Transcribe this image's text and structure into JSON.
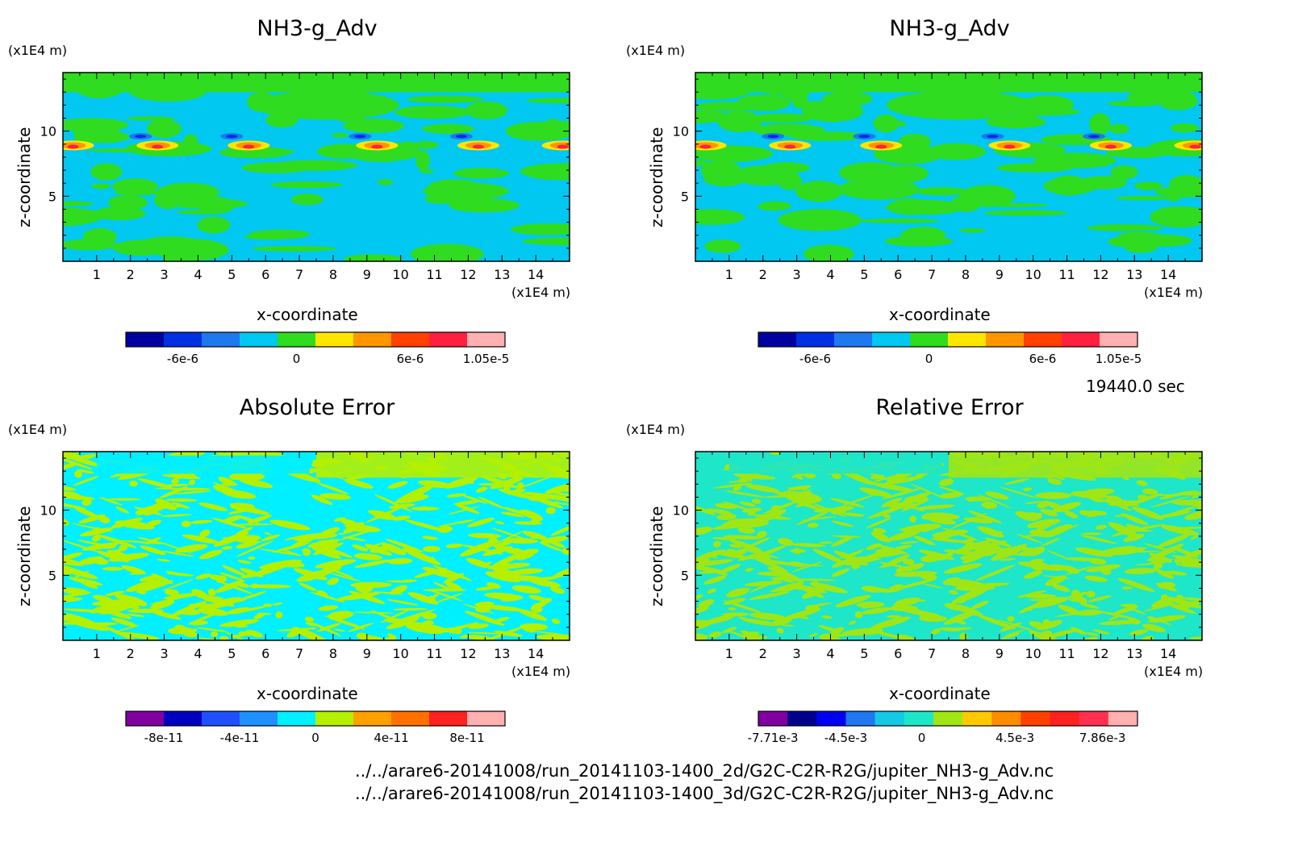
{
  "time_label": "19440.0 sec",
  "file_paths": [
    "../../arare6-20141008/run_20141103-1400_2d/G2C-C2R-R2G/jupiter_NH3-g_Adv.nc",
    "../../arare6-20141008/run_20141103-1400_3d/G2C-C2R-R2G/jupiter_NH3-g_Adv.nc"
  ],
  "chart_data": [
    {
      "type": "heatmap",
      "title": "NH3-g_Adv",
      "xlabel": "x-coordinate",
      "ylabel": "z-coordinate",
      "x_unit": "(x1E4 m)",
      "y_unit": "(x1E4 m)",
      "xlim": [
        0,
        15
      ],
      "ylim": [
        0,
        14.5
      ],
      "x_ticks": [
        "1",
        "2",
        "3",
        "4",
        "5",
        "6",
        "7",
        "8",
        "9",
        "10",
        "11",
        "12",
        "13",
        "14"
      ],
      "y_ticks": [
        "5",
        "10"
      ],
      "colorbar_labels": [
        "-6e-6",
        "0",
        "6e-6",
        "1.05e-5"
      ],
      "colorbar_colors": [
        "#0000a0",
        "#0030e0",
        "#1e78f0",
        "#00c8f0",
        "#30dc20",
        "#ffe600",
        "#ff9600",
        "#ff4000",
        "#ff2040",
        "#ffb0b0"
      ],
      "dominant_colors": [
        "#00c8f0",
        "#30dc20"
      ]
    },
    {
      "type": "heatmap",
      "title": "NH3-g_Adv",
      "xlabel": "x-coordinate",
      "ylabel": "z-coordinate",
      "x_unit": "(x1E4 m)",
      "y_unit": "(x1E4 m)",
      "xlim": [
        0,
        15
      ],
      "ylim": [
        0,
        14.5
      ],
      "x_ticks": [
        "1",
        "2",
        "3",
        "4",
        "5",
        "6",
        "7",
        "8",
        "9",
        "10",
        "11",
        "12",
        "13",
        "14"
      ],
      "y_ticks": [
        "5",
        "10"
      ],
      "colorbar_labels": [
        "-6e-6",
        "0",
        "6e-6",
        "1.05e-5"
      ],
      "colorbar_colors": [
        "#0000a0",
        "#0030e0",
        "#1e78f0",
        "#00c8f0",
        "#30dc20",
        "#ffe600",
        "#ff9600",
        "#ff4000",
        "#ff2040",
        "#ffb0b0"
      ],
      "dominant_colors": [
        "#00c8f0",
        "#30dc20"
      ]
    },
    {
      "type": "heatmap",
      "title": "Absolute Error",
      "xlabel": "x-coordinate",
      "ylabel": "z-coordinate",
      "x_unit": "(x1E4 m)",
      "y_unit": "(x1E4 m)",
      "xlim": [
        0,
        15
      ],
      "ylim": [
        0,
        14.5
      ],
      "x_ticks": [
        "1",
        "2",
        "3",
        "4",
        "5",
        "6",
        "7",
        "8",
        "9",
        "10",
        "11",
        "12",
        "13",
        "14"
      ],
      "y_ticks": [
        "5",
        "10"
      ],
      "colorbar_labels": [
        "-8e-11",
        "-4e-11",
        "0",
        "4e-11",
        "8e-11"
      ],
      "colorbar_colors": [
        "#8000a0",
        "#0000c0",
        "#1e50ff",
        "#1e90ff",
        "#00f0ff",
        "#b4f000",
        "#ffa000",
        "#ff7000",
        "#ff2020",
        "#ffb0b0"
      ],
      "dominant_colors": [
        "#00f0ff",
        "#b4f000"
      ]
    },
    {
      "type": "heatmap",
      "title": "Relative Error",
      "xlabel": "x-coordinate",
      "ylabel": "z-coordinate",
      "x_unit": "(x1E4 m)",
      "y_unit": "(x1E4 m)",
      "xlim": [
        0,
        15
      ],
      "ylim": [
        0,
        14.5
      ],
      "x_ticks": [
        "1",
        "2",
        "3",
        "4",
        "5",
        "6",
        "7",
        "8",
        "9",
        "10",
        "11",
        "12",
        "13",
        "14"
      ],
      "y_ticks": [
        "5",
        "10"
      ],
      "colorbar_labels": [
        "-7.71e-3",
        "-4.5e-3",
        "0",
        "4.5e-3",
        "7.86e-3"
      ],
      "colorbar_colors": [
        "#8000a0",
        "#00008c",
        "#0000f0",
        "#1e78f0",
        "#14c8e6",
        "#1ee6c8",
        "#a0e614",
        "#ffc800",
        "#ff8c00",
        "#ff4000",
        "#ff2020",
        "#ff3050",
        "#ffb0b0"
      ],
      "dominant_colors": [
        "#1ee6c8",
        "#a0e614"
      ]
    }
  ]
}
